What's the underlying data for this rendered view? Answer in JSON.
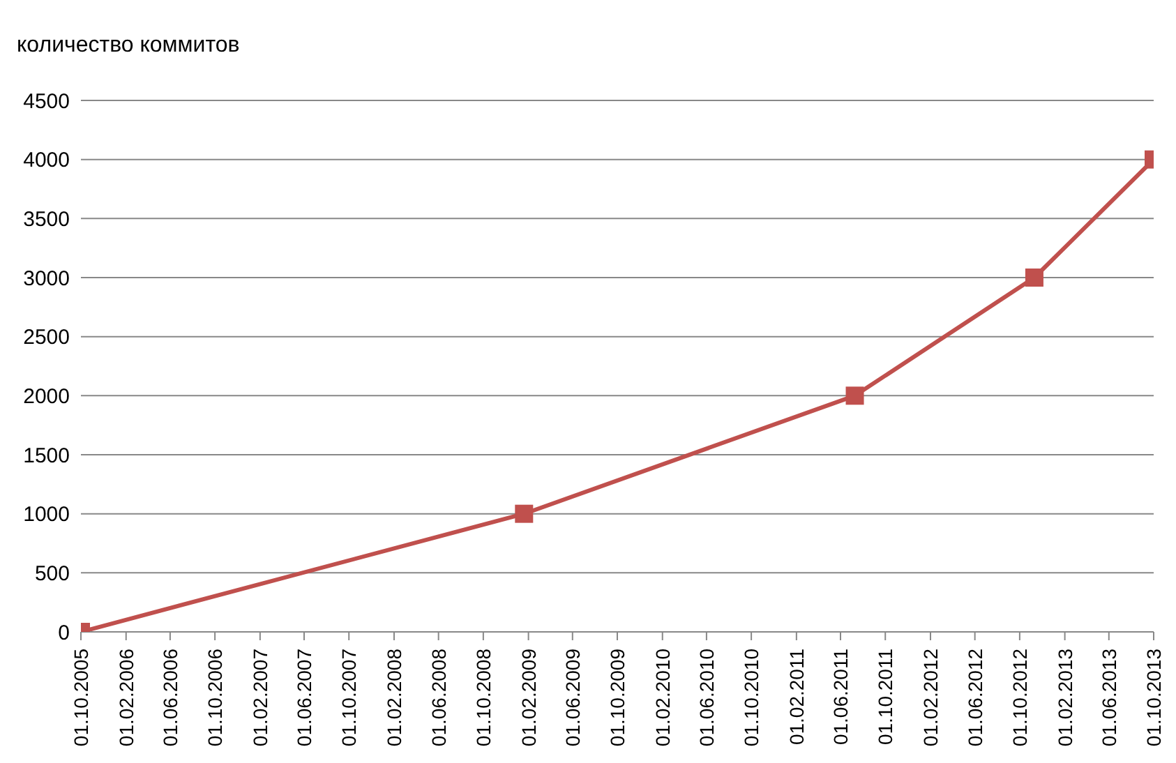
{
  "chart_data": {
    "type": "line",
    "ylabel": "количество коммитов",
    "x": [
      "2005-10-01",
      "2009-01-20",
      "2011-07-10",
      "2012-11-10",
      "2013-10-01"
    ],
    "series": [
      {
        "color": "#c0504d",
        "values": [
          0,
          1000,
          2000,
          3000,
          4000
        ]
      }
    ],
    "marker": "square",
    "line_style": "solid",
    "grid": "y",
    "ylim": [
      0,
      4500
    ],
    "yticks": [
      0,
      500,
      1000,
      1500,
      2000,
      2500,
      3000,
      3500,
      4000,
      4500
    ],
    "xlim": [
      "2005-10-01",
      "2013-10-01"
    ],
    "xticks": [
      {
        "value": "2005-10-01",
        "label": "01.10.2005"
      },
      {
        "value": "2006-02-01",
        "label": "01.02.2006"
      },
      {
        "value": "2006-06-01",
        "label": "01.06.2006"
      },
      {
        "value": "2006-10-01",
        "label": "01.10.2006"
      },
      {
        "value": "2007-02-01",
        "label": "01.02.2007"
      },
      {
        "value": "2007-06-01",
        "label": "01.06.2007"
      },
      {
        "value": "2007-10-01",
        "label": "01.10.2007"
      },
      {
        "value": "2008-02-01",
        "label": "01.02.2008"
      },
      {
        "value": "2008-06-01",
        "label": "01.06.2008"
      },
      {
        "value": "2008-10-01",
        "label": "01.10.2008"
      },
      {
        "value": "2009-02-01",
        "label": "01.02.2009"
      },
      {
        "value": "2009-06-01",
        "label": "01.06.2009"
      },
      {
        "value": "2009-10-01",
        "label": "01.10.2009"
      },
      {
        "value": "2010-02-01",
        "label": "01.02.2010"
      },
      {
        "value": "2010-06-01",
        "label": "01.06.2010"
      },
      {
        "value": "2010-10-01",
        "label": "01.10.2010"
      },
      {
        "value": "2011-02-01",
        "label": "01.02.2011"
      },
      {
        "value": "2011-06-01",
        "label": "01.06.2011"
      },
      {
        "value": "2011-10-01",
        "label": "01.10.2011"
      },
      {
        "value": "2012-02-01",
        "label": "01.02.2012"
      },
      {
        "value": "2012-06-01",
        "label": "01.06.2012"
      },
      {
        "value": "2012-10-01",
        "label": "01.10.2012"
      },
      {
        "value": "2013-02-01",
        "label": "01.02.2013"
      },
      {
        "value": "2013-06-01",
        "label": "01.06.2013"
      },
      {
        "value": "2013-10-01",
        "label": "01.10.2013"
      }
    ]
  }
}
